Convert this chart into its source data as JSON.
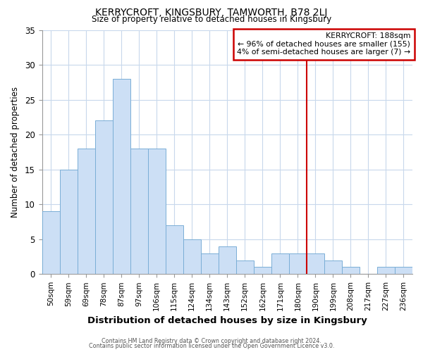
{
  "title": "KERRYCROFT, KINGSBURY, TAMWORTH, B78 2LJ",
  "subtitle": "Size of property relative to detached houses in Kingsbury",
  "xlabel": "Distribution of detached houses by size in Kingsbury",
  "ylabel": "Number of detached properties",
  "bar_labels": [
    "50sqm",
    "59sqm",
    "69sqm",
    "78sqm",
    "87sqm",
    "97sqm",
    "106sqm",
    "115sqm",
    "124sqm",
    "134sqm",
    "143sqm",
    "152sqm",
    "162sqm",
    "171sqm",
    "180sqm",
    "190sqm",
    "199sqm",
    "208sqm",
    "217sqm",
    "227sqm",
    "236sqm"
  ],
  "bar_values": [
    9,
    15,
    18,
    22,
    28,
    18,
    18,
    7,
    5,
    3,
    4,
    2,
    1,
    3,
    3,
    3,
    2,
    1,
    0,
    1,
    1
  ],
  "bar_color": "#ccdff5",
  "bar_edge_color": "#7aaed6",
  "grid_color": "#c8d8ec",
  "background_color": "#ffffff",
  "vline_x": 14.5,
  "vline_color": "#cc0000",
  "annotation_title": "KERRYCROFT: 188sqm",
  "annotation_line1": "← 96% of detached houses are smaller (155)",
  "annotation_line2": "4% of semi-detached houses are larger (7) →",
  "annotation_box_color": "#cc0000",
  "ylim": [
    0,
    35
  ],
  "yticks": [
    0,
    5,
    10,
    15,
    20,
    25,
    30,
    35
  ],
  "footer1": "Contains HM Land Registry data © Crown copyright and database right 2024.",
  "footer2": "Contains public sector information licensed under the Open Government Licence v3.0."
}
